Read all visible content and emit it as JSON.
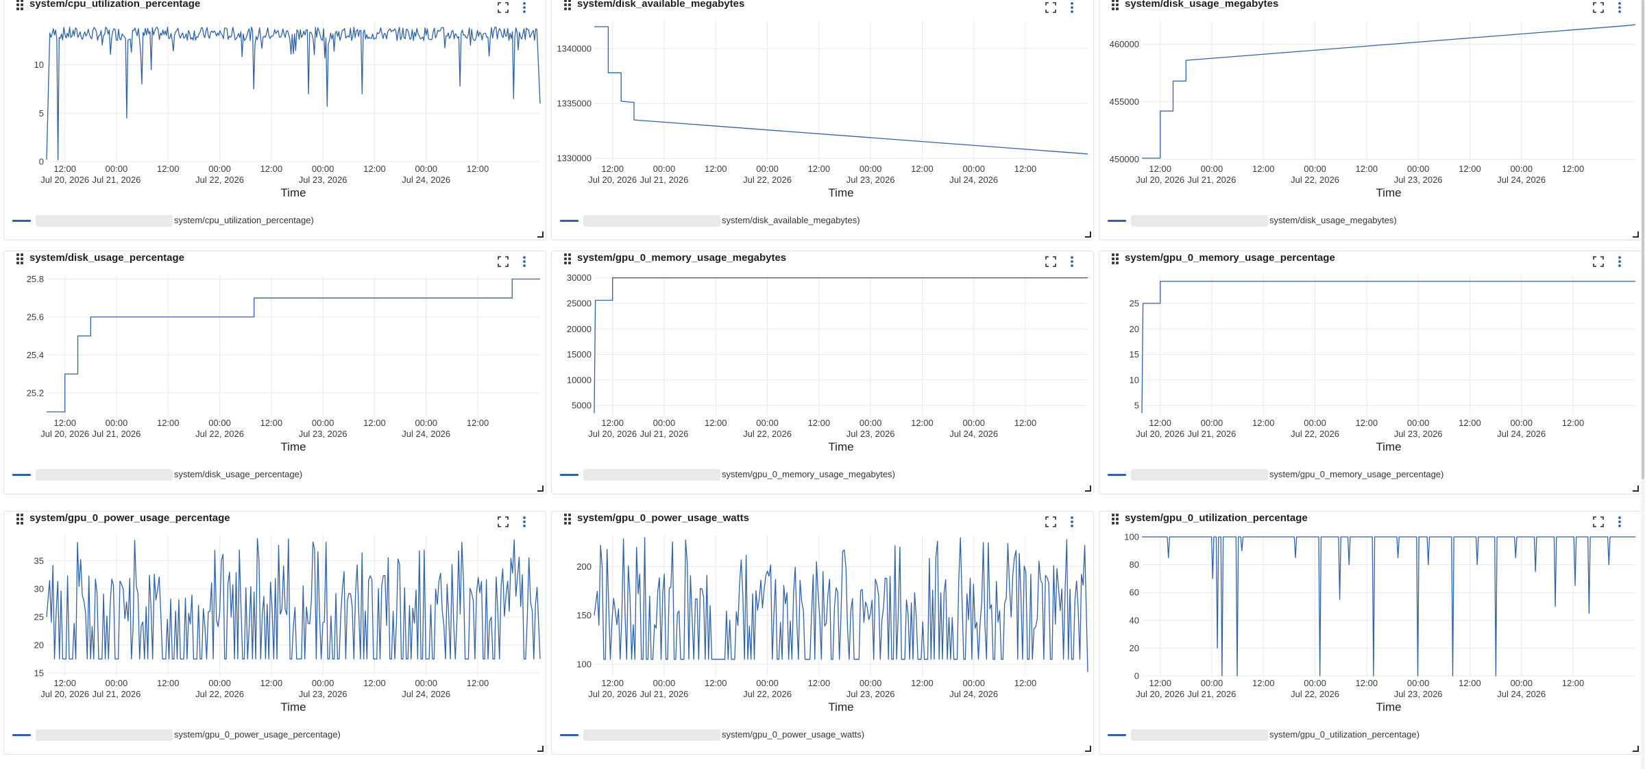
{
  "legend_suffix_close": ")",
  "x_axis": {
    "title": "Time",
    "ticks": [
      {
        "time": "2026-07-20T12:00",
        "line1": "12:00",
        "line2": "Jul 20, 2026"
      },
      {
        "time": "2026-07-21T00:00",
        "line1": "00:00",
        "line2": "Jul 21, 2026"
      },
      {
        "time": "2026-07-21T12:00",
        "line1": "12:00",
        "line2": ""
      },
      {
        "time": "2026-07-22T00:00",
        "line1": "00:00",
        "line2": "Jul 22, 2026"
      },
      {
        "time": "2026-07-22T12:00",
        "line1": "12:00",
        "line2": ""
      },
      {
        "time": "2026-07-23T00:00",
        "line1": "00:00",
        "line2": "Jul 23, 2026"
      },
      {
        "time": "2026-07-23T12:00",
        "line1": "12:00",
        "line2": ""
      },
      {
        "time": "2026-07-24T00:00",
        "line1": "00:00",
        "line2": "Jul 24, 2026"
      },
      {
        "time": "2026-07-24T12:00",
        "line1": "12:00",
        "line2": ""
      }
    ],
    "range": [
      "2026-07-20T07:45",
      "2026-07-25T02:30"
    ]
  },
  "colors": {
    "series": "#2f62a6",
    "grid": "#e6e8eb",
    "axis": "#cfd3d8"
  },
  "chart_data": [
    {
      "type": "line",
      "title": "system/cpu_utilization_percentage",
      "legend": "system/cpu_utilization_percentage",
      "xlabel": "Time",
      "ylim": [
        0,
        14.5
      ],
      "yticks": [
        0,
        5,
        10
      ],
      "ylabels": [
        "0",
        "5",
        "10"
      ],
      "style": "noisy",
      "base": [
        13.2,
        12.3
      ],
      "dips": [
        [
          0.02,
          0.2
        ],
        [
          0.16,
          4.5
        ],
        [
          0.19,
          8.0
        ],
        [
          0.21,
          9.5
        ],
        [
          0.42,
          7.5
        ],
        [
          0.53,
          7.0
        ],
        [
          0.57,
          5.7
        ],
        [
          0.64,
          7.0
        ],
        [
          0.84,
          7.8
        ],
        [
          0.95,
          6.5
        ]
      ],
      "points": [
        [
          "2026-07-20T07:45",
          0.2
        ],
        [
          "2026-07-20T08:00",
          12.5
        ],
        [
          "2026-07-20T20:00",
          13.4
        ],
        [
          "2026-07-21T12:00",
          13.0
        ],
        [
          "2026-07-22T12:00",
          13.1
        ],
        [
          "2026-07-23T12:00",
          13.0
        ],
        [
          "2026-07-24T12:00",
          13.2
        ],
        [
          "2026-07-25T02:30",
          6.0
        ]
      ]
    },
    {
      "type": "line",
      "title": "system/disk_available_megabytes",
      "legend": "system/disk_available_megabytes",
      "xlabel": "Time",
      "ylim": [
        1329700,
        1342500
      ],
      "yticks": [
        1330000,
        1335000,
        1340000
      ],
      "ylabels": [
        "1330000",
        "1335000",
        "1340000"
      ],
      "style": "step",
      "points": [
        [
          "2026-07-20T07:45",
          1342000
        ],
        [
          "2026-07-20T11:00",
          1342000
        ],
        [
          "2026-07-20T11:00",
          1337800
        ],
        [
          "2026-07-20T14:00",
          1337800
        ],
        [
          "2026-07-20T14:00",
          1335200
        ],
        [
          "2026-07-20T17:00",
          1335100
        ],
        [
          "2026-07-20T17:00",
          1333500
        ],
        [
          "2026-07-25T02:30",
          1330400
        ]
      ]
    },
    {
      "type": "line",
      "title": "system/disk_usage_megabytes",
      "legend": "system/disk_usage_megabytes",
      "xlabel": "Time",
      "ylim": [
        449800,
        462000
      ],
      "yticks": [
        450000,
        455000,
        460000
      ],
      "ylabels": [
        "450000",
        "455000",
        "460000"
      ],
      "style": "step",
      "points": [
        [
          "2026-07-20T07:45",
          450100
        ],
        [
          "2026-07-20T12:00",
          450100
        ],
        [
          "2026-07-20T12:00",
          454200
        ],
        [
          "2026-07-20T15:00",
          454200
        ],
        [
          "2026-07-20T15:00",
          456800
        ],
        [
          "2026-07-20T18:00",
          456800
        ],
        [
          "2026-07-20T18:00",
          458600
        ],
        [
          "2026-07-25T00:00",
          461600
        ],
        [
          "2026-07-25T02:30",
          461700
        ]
      ]
    },
    {
      "type": "line",
      "title": "system/disk_usage_percentage",
      "legend": "system/disk_usage_percentage",
      "xlabel": "Time",
      "ylim": [
        25.08,
        25.82
      ],
      "yticks": [
        25.2,
        25.4,
        25.6,
        25.8
      ],
      "ylabels": [
        "25.2",
        "25.4",
        "25.6",
        "25.8"
      ],
      "style": "step",
      "points": [
        [
          "2026-07-20T07:45",
          25.1
        ],
        [
          "2026-07-20T12:00",
          25.1
        ],
        [
          "2026-07-20T12:00",
          25.3
        ],
        [
          "2026-07-20T15:00",
          25.3
        ],
        [
          "2026-07-20T15:00",
          25.5
        ],
        [
          "2026-07-20T18:00",
          25.5
        ],
        [
          "2026-07-20T18:00",
          25.6
        ],
        [
          "2026-07-22T08:00",
          25.6
        ],
        [
          "2026-07-22T08:00",
          25.7
        ],
        [
          "2026-07-24T20:00",
          25.7
        ],
        [
          "2026-07-24T20:00",
          25.8
        ],
        [
          "2026-07-25T02:30",
          25.8
        ]
      ]
    },
    {
      "type": "line",
      "title": "system/gpu_0_memory_usage_megabytes",
      "legend": "system/gpu_0_memory_usage_megabytes",
      "xlabel": "Time",
      "ylim": [
        3000,
        30500
      ],
      "yticks": [
        5000,
        10000,
        15000,
        20000,
        25000,
        30000
      ],
      "ylabels": [
        "5000",
        "10000",
        "15000",
        "20000",
        "25000",
        "30000"
      ],
      "style": "step",
      "points": [
        [
          "2026-07-20T07:45",
          3500
        ],
        [
          "2026-07-20T08:00",
          25600
        ],
        [
          "2026-07-20T12:00",
          25600
        ],
        [
          "2026-07-20T12:00",
          30000
        ],
        [
          "2026-07-25T02:30",
          30000
        ]
      ]
    },
    {
      "type": "line",
      "title": "system/gpu_0_memory_usage_percentage",
      "legend": "system/gpu_0_memory_usage_percentage",
      "xlabel": "Time",
      "ylim": [
        3,
        30.5
      ],
      "yticks": [
        5,
        10,
        15,
        20,
        25
      ],
      "ylabels": [
        "5",
        "10",
        "15",
        "20",
        "25"
      ],
      "style": "step",
      "points": [
        [
          "2026-07-20T07:45",
          3.5
        ],
        [
          "2026-07-20T08:00",
          25
        ],
        [
          "2026-07-20T12:00",
          25
        ],
        [
          "2026-07-20T12:00",
          29.3
        ],
        [
          "2026-07-25T02:30",
          29.3
        ]
      ]
    },
    {
      "type": "line",
      "title": "system/gpu_0_power_usage_percentage",
      "legend": "system/gpu_0_power_usage_percentage",
      "xlabel": "Time",
      "ylim": [
        14.5,
        39.5
      ],
      "yticks": [
        15,
        20,
        25,
        30,
        35
      ],
      "ylabels": [
        "15",
        "20",
        "25",
        "30",
        "35"
      ],
      "style": "spiky",
      "low": 17.5,
      "high": 39,
      "mid": 25,
      "points": [
        [
          "2026-07-20T07:45",
          25
        ],
        [
          "2026-07-25T02:30",
          17.5
        ]
      ]
    },
    {
      "type": "line",
      "title": "system/gpu_0_power_usage_watts",
      "legend": "system/gpu_0_power_usage_watts",
      "xlabel": "Time",
      "ylim": [
        88,
        232
      ],
      "yticks": [
        100,
        150,
        200
      ],
      "ylabels": [
        "100",
        "150",
        "200"
      ],
      "style": "spiky",
      "low": 105,
      "high": 230,
      "mid": 150,
      "points": [
        [
          "2026-07-20T07:45",
          150
        ],
        [
          "2026-07-25T02:30",
          92
        ]
      ]
    },
    {
      "type": "line",
      "title": "system/gpu_0_utilization_percentage",
      "legend": "system/gpu_0_utilization_percentage",
      "xlabel": "Time",
      "ylim": [
        0,
        101
      ],
      "yticks": [
        0,
        20,
        40,
        60,
        80,
        100
      ],
      "ylabels": [
        "0",
        "20",
        "40",
        "60",
        "80",
        "100"
      ],
      "style": "drops",
      "base": [
        100,
        100
      ],
      "dips": [
        [
          0.05,
          85
        ],
        [
          0.14,
          70
        ],
        [
          0.15,
          20
        ],
        [
          0.16,
          0
        ],
        [
          0.19,
          0
        ],
        [
          0.2,
          90
        ],
        [
          0.31,
          85
        ],
        [
          0.36,
          0
        ],
        [
          0.4,
          55
        ],
        [
          0.42,
          80
        ],
        [
          0.47,
          0
        ],
        [
          0.52,
          85
        ],
        [
          0.56,
          0
        ],
        [
          0.58,
          80
        ],
        [
          0.63,
          0
        ],
        [
          0.68,
          80
        ],
        [
          0.72,
          0
        ],
        [
          0.76,
          85
        ],
        [
          0.8,
          75
        ],
        [
          0.84,
          50
        ],
        [
          0.88,
          65
        ],
        [
          0.91,
          45
        ],
        [
          0.95,
          80
        ]
      ],
      "points": [
        [
          "2026-07-20T07:45",
          100
        ],
        [
          "2026-07-25T02:30",
          100
        ]
      ]
    }
  ]
}
